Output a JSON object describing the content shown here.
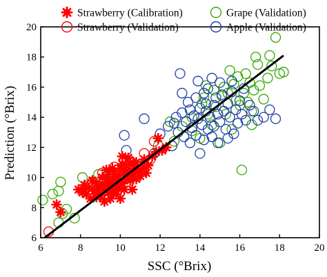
{
  "chart_data": {
    "type": "scatter",
    "xlabel": "SSC (°Brix)",
    "ylabel": "Prediction (°Brix)",
    "xlim": [
      6,
      20
    ],
    "ylim": [
      6,
      20
    ],
    "xticks": [
      6,
      8,
      10,
      12,
      14,
      16,
      18,
      20
    ],
    "yticks": [
      6,
      8,
      10,
      12,
      14,
      16,
      18,
      20
    ],
    "grid": false,
    "legend_position": "top",
    "fit_line": {
      "x": [
        6.2,
        18.2
      ],
      "y": [
        6.0,
        18.1
      ],
      "color": "#000000"
    },
    "series": [
      {
        "name": "Strawberry (Calibration)",
        "marker": "asterisk",
        "color": "#ff0000",
        "points": [
          [
            6.8,
            8.2
          ],
          [
            7.0,
            7.7
          ],
          [
            7.9,
            9.2
          ],
          [
            8.1,
            9.0
          ],
          [
            8.2,
            9.5
          ],
          [
            8.3,
            8.9
          ],
          [
            8.4,
            9.3
          ],
          [
            8.5,
            8.6
          ],
          [
            8.6,
            9.8
          ],
          [
            8.7,
            9.1
          ],
          [
            8.8,
            8.7
          ],
          [
            8.8,
            9.6
          ],
          [
            8.9,
            9.0
          ],
          [
            9.0,
            9.4
          ],
          [
            9.0,
            8.8
          ],
          [
            9.1,
            10.0
          ],
          [
            9.2,
            9.2
          ],
          [
            9.2,
            8.4
          ],
          [
            9.3,
            9.7
          ],
          [
            9.4,
            9.0
          ],
          [
            9.4,
            10.2
          ],
          [
            9.5,
            9.5
          ],
          [
            9.5,
            8.6
          ],
          [
            9.6,
            9.9
          ],
          [
            9.6,
            9.1
          ],
          [
            9.7,
            10.4
          ],
          [
            9.7,
            9.4
          ],
          [
            9.8,
            9.8
          ],
          [
            9.8,
            8.9
          ],
          [
            9.9,
            10.1
          ],
          [
            9.9,
            9.3
          ],
          [
            10.0,
            10.6
          ],
          [
            10.0,
            9.7
          ],
          [
            10.0,
            8.6
          ],
          [
            10.1,
            10.9
          ],
          [
            10.1,
            9.6
          ],
          [
            10.2,
            10.3
          ],
          [
            10.2,
            9.2
          ],
          [
            10.3,
            10.8
          ],
          [
            10.3,
            9.9
          ],
          [
            10.4,
            11.3
          ],
          [
            10.4,
            10.4
          ],
          [
            10.5,
            9.8
          ],
          [
            10.5,
            10.9
          ],
          [
            10.6,
            10.1
          ],
          [
            10.6,
            9.2
          ],
          [
            10.7,
            10.6
          ],
          [
            10.8,
            9.9
          ],
          [
            10.8,
            11.0
          ],
          [
            10.9,
            10.4
          ],
          [
            11.0,
            10.1
          ],
          [
            11.1,
            10.6
          ],
          [
            11.2,
            11.2
          ],
          [
            11.3,
            10.3
          ],
          [
            11.4,
            10.8
          ],
          [
            11.6,
            11.4
          ],
          [
            11.8,
            11.7
          ],
          [
            11.9,
            12.6
          ],
          [
            12.1,
            11.8
          ],
          [
            12.3,
            12.0
          ],
          [
            9.3,
            10.5
          ],
          [
            9.6,
            10.6
          ],
          [
            10.1,
            11.4
          ],
          [
            8.9,
            9.4
          ]
        ]
      },
      {
        "name": "Strawberry (Validation)",
        "marker": "circle",
        "color": "#ff0000",
        "points": [
          [
            6.4,
            6.4
          ],
          [
            8.6,
            9.7
          ],
          [
            9.1,
            10.3
          ],
          [
            9.3,
            9.6
          ],
          [
            9.5,
            10.1
          ],
          [
            9.7,
            10.7
          ],
          [
            9.9,
            9.9
          ],
          [
            10.0,
            10.4
          ],
          [
            10.2,
            10.2
          ],
          [
            10.4,
            10.0
          ],
          [
            10.5,
            11.1
          ],
          [
            10.7,
            10.5
          ],
          [
            10.9,
            10.3
          ],
          [
            11.0,
            10.7
          ],
          [
            11.2,
            11.6
          ],
          [
            11.5,
            11.2
          ],
          [
            11.7,
            12.4
          ],
          [
            9.2,
            9.9
          ],
          [
            8.8,
            9.1
          ],
          [
            10.6,
            10.8
          ]
        ]
      },
      {
        "name": "Grape (Validation)",
        "marker": "circle",
        "color": "#33aa00",
        "points": [
          [
            6.1,
            8.5
          ],
          [
            6.6,
            8.9
          ],
          [
            6.9,
            7.0
          ],
          [
            6.9,
            9.1
          ],
          [
            7.0,
            9.7
          ],
          [
            7.1,
            7.6
          ],
          [
            7.3,
            7.9
          ],
          [
            7.7,
            7.3
          ],
          [
            8.1,
            10.0
          ],
          [
            8.9,
            10.2
          ],
          [
            11.1,
            10.8
          ],
          [
            11.9,
            12.1
          ],
          [
            12.5,
            13.7
          ],
          [
            13.1,
            13.4
          ],
          [
            13.6,
            13.1
          ],
          [
            14.0,
            12.6
          ],
          [
            14.1,
            14.9
          ],
          [
            14.2,
            15.3
          ],
          [
            14.4,
            14.2
          ],
          [
            14.6,
            13.5
          ],
          [
            14.7,
            15.8
          ],
          [
            14.8,
            14.7
          ],
          [
            15.0,
            12.3
          ],
          [
            15.1,
            15.4
          ],
          [
            15.2,
            16.0
          ],
          [
            15.3,
            14.2
          ],
          [
            15.4,
            15.6
          ],
          [
            15.6,
            13.2
          ],
          [
            15.7,
            16.2
          ],
          [
            15.8,
            15.1
          ],
          [
            15.9,
            16.7
          ],
          [
            16.0,
            14.8
          ],
          [
            16.1,
            10.5
          ],
          [
            16.2,
            15.6
          ],
          [
            16.3,
            16.9
          ],
          [
            16.4,
            15.0
          ],
          [
            16.5,
            16.3
          ],
          [
            16.6,
            14.4
          ],
          [
            16.7,
            15.8
          ],
          [
            16.9,
            17.5
          ],
          [
            17.0,
            16.1
          ],
          [
            17.2,
            15.2
          ],
          [
            17.4,
            16.6
          ],
          [
            17.6,
            17.4
          ],
          [
            17.8,
            19.3
          ],
          [
            18.0,
            16.9
          ],
          [
            18.2,
            17.0
          ],
          [
            16.8,
            18.0
          ],
          [
            17.5,
            18.1
          ],
          [
            15.5,
            17.1
          ],
          [
            14.3,
            16.1
          ],
          [
            13.6,
            14.0
          ],
          [
            12.7,
            12.4
          ],
          [
            16.6,
            13.5
          ]
        ]
      },
      {
        "name": "Apple (Validation)",
        "marker": "circle",
        "color": "#1f3fa8",
        "points": [
          [
            10.2,
            12.8
          ],
          [
            10.3,
            11.8
          ],
          [
            11.2,
            13.9
          ],
          [
            11.7,
            11.6
          ],
          [
            12.0,
            12.9
          ],
          [
            12.4,
            13.4
          ],
          [
            12.6,
            12.1
          ],
          [
            12.8,
            14.0
          ],
          [
            12.9,
            13.0
          ],
          [
            13.0,
            16.9
          ],
          [
            13.1,
            14.3
          ],
          [
            13.2,
            12.7
          ],
          [
            13.3,
            13.7
          ],
          [
            13.4,
            15.0
          ],
          [
            13.5,
            14.5
          ],
          [
            13.5,
            12.3
          ],
          [
            13.6,
            13.3
          ],
          [
            13.7,
            14.1
          ],
          [
            13.8,
            12.8
          ],
          [
            13.8,
            15.3
          ],
          [
            13.9,
            13.9
          ],
          [
            14.0,
            14.6
          ],
          [
            14.0,
            11.6
          ],
          [
            14.1,
            13.5
          ],
          [
            14.2,
            15.6
          ],
          [
            14.2,
            12.5
          ],
          [
            14.3,
            14.4
          ],
          [
            14.4,
            13.2
          ],
          [
            14.4,
            15.9
          ],
          [
            14.5,
            14.0
          ],
          [
            14.6,
            12.7
          ],
          [
            14.7,
            14.8
          ],
          [
            14.7,
            13.4
          ],
          [
            14.8,
            15.3
          ],
          [
            14.9,
            12.3
          ],
          [
            14.9,
            14.2
          ],
          [
            15.0,
            13.7
          ],
          [
            15.1,
            15.5
          ],
          [
            15.2,
            14.4
          ],
          [
            15.3,
            13.2
          ],
          [
            15.4,
            14.9
          ],
          [
            15.5,
            14.0
          ],
          [
            15.6,
            15.7
          ],
          [
            15.7,
            12.9
          ],
          [
            15.8,
            14.5
          ],
          [
            15.9,
            13.6
          ],
          [
            16.0,
            15.1
          ],
          [
            16.1,
            14.2
          ],
          [
            16.2,
            15.9
          ],
          [
            16.3,
            13.8
          ],
          [
            16.5,
            14.8
          ],
          [
            16.7,
            14.4
          ],
          [
            16.9,
            13.8
          ],
          [
            17.2,
            14.0
          ],
          [
            17.5,
            14.5
          ],
          [
            17.8,
            13.9
          ],
          [
            15.0,
            16.3
          ],
          [
            14.6,
            16.6
          ],
          [
            13.9,
            16.4
          ],
          [
            15.6,
            16.4
          ],
          [
            13.1,
            15.6
          ],
          [
            12.7,
            13.6
          ],
          [
            14.3,
            14.9
          ],
          [
            15.4,
            12.6
          ]
        ]
      }
    ]
  }
}
